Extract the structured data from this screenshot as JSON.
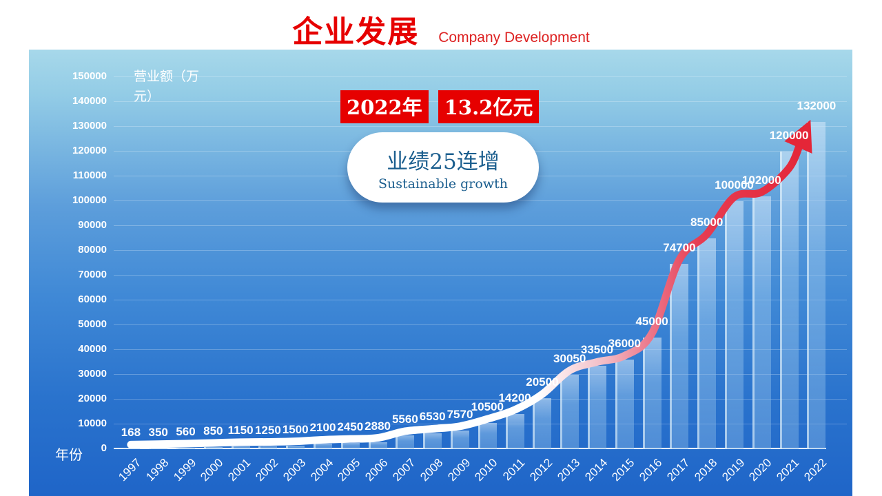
{
  "header": {
    "title": "企业发展",
    "subtitle": "Company Development"
  },
  "annotations": {
    "badge_year": "2022年",
    "badge_amount": "13.2亿元",
    "bubble_title": "业绩25连增",
    "bubble_subtitle": "Sustainable growth"
  },
  "colors": {
    "title_red": "#e60000",
    "badge_bg": "#e60000",
    "bubble_text": "#1b5e8e",
    "panel_top": "#a7d8ea",
    "panel_bottom": "#1f65c8",
    "bar_fill": "rgba(150,196,236,0.5)",
    "trend_start": "#ffffff",
    "trend_end": "#e42638"
  },
  "chart_data": {
    "type": "bar",
    "title": "企业发展 Company Development",
    "xlabel": "年份",
    "ylabel": "营业额（万元）",
    "categories": [
      "1997",
      "1998",
      "1999",
      "2000",
      "2001",
      "2002",
      "2003",
      "2004",
      "2005",
      "2006",
      "2007",
      "2008",
      "2009",
      "2010",
      "2011",
      "2012",
      "2013",
      "2014",
      "2015",
      "2016",
      "2017",
      "2018",
      "2019",
      "2020",
      "2021",
      "2022"
    ],
    "values": [
      168,
      350,
      560,
      850,
      1150,
      1250,
      1500,
      2100,
      2450,
      2880,
      5560,
      6530,
      7570,
      10500,
      14200,
      20500,
      30050,
      33500,
      36000,
      45000,
      74700,
      85000,
      100000,
      102000,
      120000,
      132000
    ],
    "ylim": [
      0,
      150000
    ],
    "ytick_step": 10000,
    "grid": true,
    "legend_position": "none",
    "annotations": [
      "2022年 13.2亿元",
      "业绩25连增 Sustainable growth"
    ],
    "trend": {
      "type": "smoothed-arrow-line",
      "description": "thick trend ribbon over bar tops, white on left fading to red, ending in large red arrowhead at 2022",
      "color_start": "#ffffff",
      "color_end": "#e42638"
    }
  }
}
